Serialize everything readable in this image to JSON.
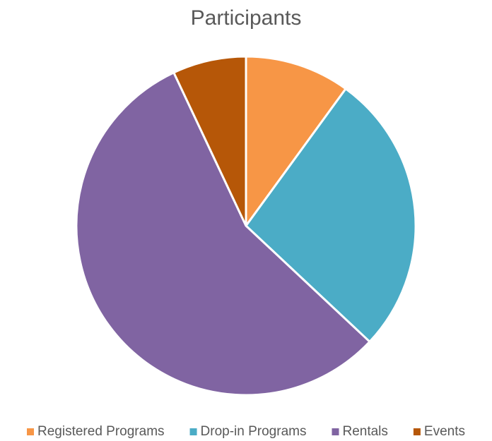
{
  "chart_data": {
    "type": "pie",
    "title": "Participants",
    "categories": [
      "Registered Programs",
      "Drop-in Programs",
      "Rentals",
      "Events"
    ],
    "values": [
      10,
      27,
      56,
      7
    ],
    "colors": [
      "#f79646",
      "#4bacc6",
      "#8064a2",
      "#b65708"
    ],
    "legend": "bottom"
  }
}
